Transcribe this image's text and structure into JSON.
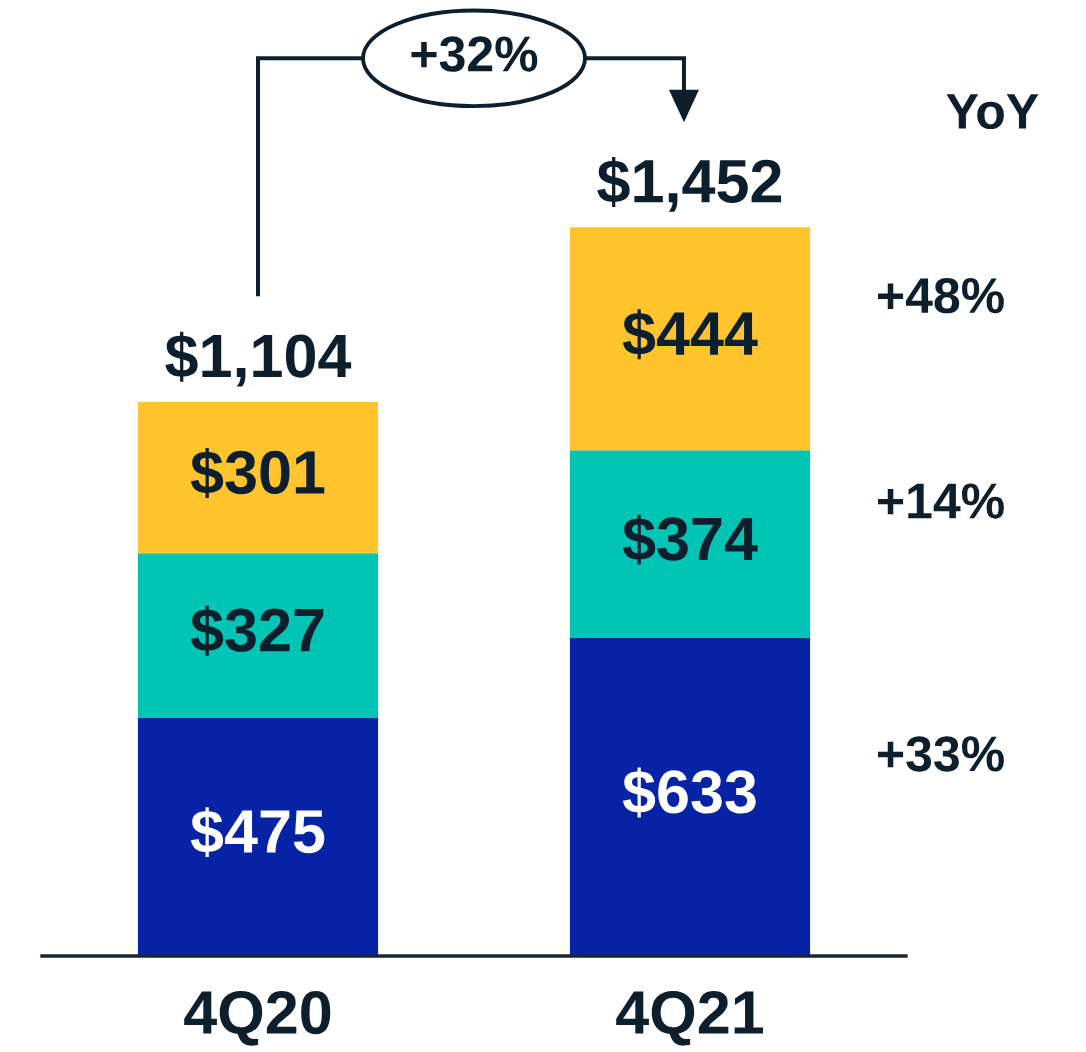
{
  "chart_data": {
    "type": "bar",
    "stacked": true,
    "categories": [
      "4Q20",
      "4Q21"
    ],
    "series": [
      {
        "color": "#0623a6",
        "values": [
          475,
          633
        ],
        "value_labels": [
          "$475",
          "$633"
        ]
      },
      {
        "color": "#00c4b4",
        "values": [
          327,
          374
        ],
        "value_labels": [
          "$327",
          "$374"
        ]
      },
      {
        "color": "#ffc42e",
        "values": [
          301,
          444
        ],
        "value_labels": [
          "$301",
          "$444"
        ]
      }
    ],
    "totals": [
      "$1,104",
      "$1,452"
    ],
    "annotations": [
      "+32%",
      "YoY",
      "+48%",
      "+14%",
      "+33%"
    ]
  }
}
